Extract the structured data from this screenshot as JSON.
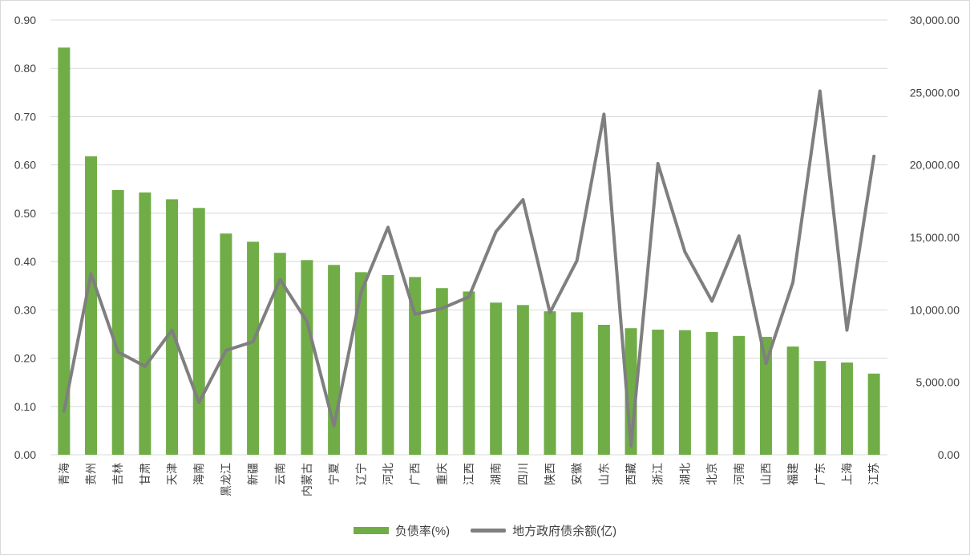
{
  "chart_data": {
    "type": "bar",
    "categories": [
      "青海",
      "贵州",
      "吉林",
      "甘肃",
      "天津",
      "海南",
      "黑龙江",
      "新疆",
      "云南",
      "内蒙古",
      "宁夏",
      "辽宁",
      "河北",
      "广西",
      "重庆",
      "江西",
      "湖南",
      "四川",
      "陕西",
      "安徽",
      "山东",
      "西藏",
      "浙江",
      "湖北",
      "北京",
      "河南",
      "山西",
      "福建",
      "广东",
      "上海",
      "江苏"
    ],
    "series": [
      {
        "name": "负债率(%)",
        "type": "bar",
        "axis": "left",
        "color": "#70ad47",
        "values": [
          0.843,
          0.618,
          0.548,
          0.543,
          0.529,
          0.511,
          0.458,
          0.441,
          0.418,
          0.403,
          0.393,
          0.378,
          0.372,
          0.368,
          0.345,
          0.338,
          0.315,
          0.31,
          0.297,
          0.295,
          0.269,
          0.262,
          0.259,
          0.258,
          0.254,
          0.246,
          0.244,
          0.224,
          0.194,
          0.191,
          0.168
        ]
      },
      {
        "name": "地方政府债余额(亿)",
        "type": "line",
        "axis": "right",
        "color": "#7f7f7f",
        "values": [
          3000,
          12500,
          7100,
          6100,
          8600,
          3600,
          7200,
          7800,
          12100,
          9200,
          2000,
          11200,
          15700,
          9700,
          10100,
          10900,
          15400,
          17600,
          9800,
          13400,
          23500,
          600,
          20100,
          14000,
          10600,
          15100,
          6300,
          11900,
          25100,
          8600,
          20600
        ]
      }
    ],
    "y_left": {
      "ylim": [
        0,
        0.9
      ],
      "ticks": [
        "0.00",
        "0.10",
        "0.20",
        "0.30",
        "0.40",
        "0.50",
        "0.60",
        "0.70",
        "0.80",
        "0.90"
      ]
    },
    "y_right": {
      "ylim": [
        0,
        30000
      ],
      "ticks": [
        "0.00",
        "5,000.00",
        "10,000.00",
        "15,000.00",
        "20,000.00",
        "25,000.00",
        "30,000.00"
      ]
    },
    "grid": true,
    "legend_position": "bottom"
  }
}
